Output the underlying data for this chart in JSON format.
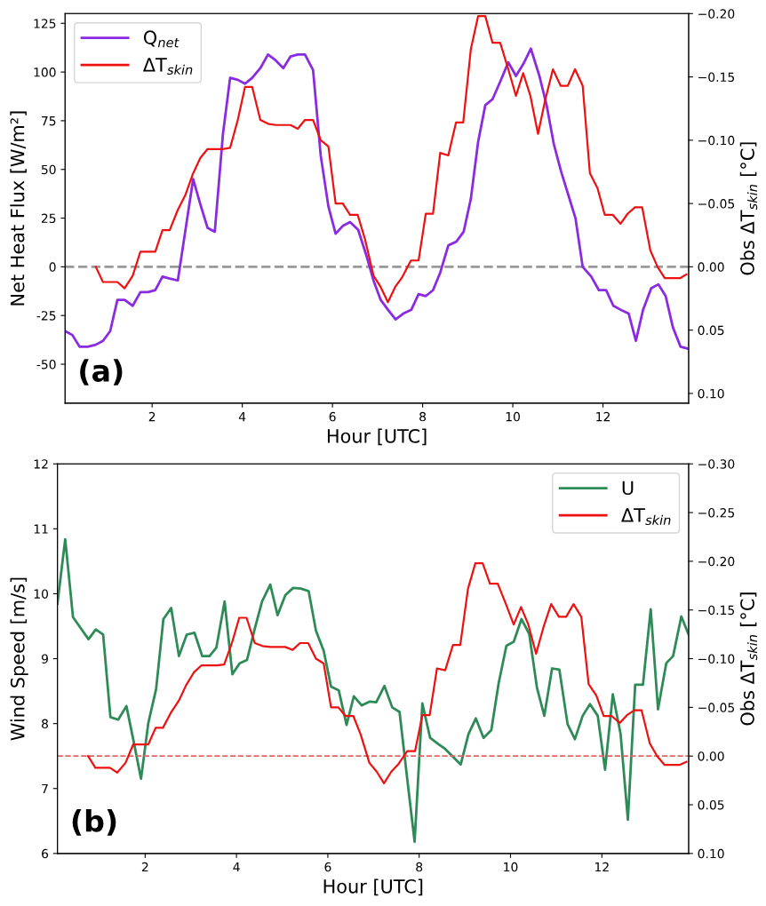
{
  "chart_data": [
    {
      "type": "line",
      "xlabel": "Hour [UTC]",
      "ylabel": "Net Heat Flux [W/m²]",
      "y2label": "Obs ΔT$_{skin}$ [°C]",
      "legend": "top left",
      "annotations": [
        "(a)"
      ],
      "xlim": [
        0.07,
        13.9
      ],
      "xticks": [
        2,
        4,
        6,
        8,
        10,
        12
      ],
      "ylim": [
        -70,
        130
      ],
      "yticks": [
        -50,
        -25,
        0,
        25,
        50,
        75,
        100,
        125
      ],
      "y2lim": [
        0.1077,
        -0.2
      ],
      "y2ticks": [
        {
          "value": 0.1,
          "label": "0.10"
        },
        {
          "value": 0.05,
          "label": "0.05"
        },
        {
          "value": 0,
          "label": "0.00"
        },
        {
          "value": -0.05,
          "label": "−0.05"
        },
        {
          "value": -0.1,
          "label": "−0.10"
        },
        {
          "value": -0.15,
          "label": "−0.15"
        },
        {
          "value": -0.2,
          "label": "−0.20"
        }
      ],
      "ref_lines": [
        {
          "axis": "y",
          "value": 0,
          "color": "#999999",
          "line_style": "dashed"
        }
      ],
      "series": [
        {
          "name": "Q$_{net}$",
          "color": "#8a2be2",
          "x": [
            0.07,
            0.23,
            0.39,
            0.57,
            0.75,
            0.91,
            1.07,
            1.23,
            1.39,
            1.57,
            1.74,
            1.91,
            2.07,
            2.23,
            2.39,
            2.57,
            2.91,
            3.07,
            3.23,
            3.39,
            3.57,
            3.73,
            3.9,
            4.06,
            4.22,
            4.4,
            4.57,
            4.74,
            4.91,
            5.07,
            5.23,
            5.39,
            5.57,
            5.74,
            5.91,
            6.07,
            6.23,
            6.39,
            6.57,
            6.75,
            6.91,
            7.07,
            7.23,
            7.4,
            7.57,
            7.75,
            7.91,
            8.07,
            8.23,
            8.39,
            8.57,
            8.75,
            8.91,
            9.07,
            9.23,
            9.39,
            9.55,
            9.72,
            9.9,
            10.07,
            10.23,
            10.4,
            10.59,
            10.75,
            10.91,
            11.07,
            11.23,
            11.39,
            11.55,
            11.74,
            11.91,
            12.07,
            12.23,
            12.39,
            12.57,
            12.73,
            12.89,
            13.07,
            13.23,
            13.39,
            13.55,
            13.72,
            13.88
          ],
          "values": [
            -33,
            -35,
            -41,
            -41,
            -40,
            -38,
            -33,
            -17,
            -17,
            -20,
            -13,
            -13,
            -12,
            -5,
            -6,
            -7,
            45,
            32,
            20,
            18,
            68,
            97,
            96,
            94,
            97,
            102,
            109,
            106,
            102,
            108,
            109,
            109,
            101,
            57,
            31,
            17,
            21,
            23,
            19,
            6,
            -7,
            -17,
            -22,
            -27,
            -24,
            -22,
            -14,
            -15,
            -12,
            -3,
            11,
            13,
            18,
            35,
            64,
            83,
            86,
            95,
            105,
            98,
            104,
            112,
            98,
            83,
            63,
            49,
            37,
            25,
            0,
            -5,
            -12,
            -12,
            -20,
            -22,
            -24,
            -38,
            -22,
            -11,
            -9,
            -15,
            -31,
            -41,
            -42
          ]
        },
        {
          "name": "ΔT$_{skin}$",
          "color": "#ee1111",
          "axis": "y2",
          "x": [
            0.75,
            0.91,
            1.23,
            1.39,
            1.57,
            1.74,
            2.07,
            2.23,
            2.39,
            2.57,
            2.74,
            2.9,
            3.07,
            3.23,
            3.57,
            3.73,
            3.9,
            4.06,
            4.22,
            4.4,
            4.57,
            4.74,
            5.07,
            5.23,
            5.39,
            5.57,
            5.74,
            5.91,
            6.07,
            6.23,
            6.39,
            6.56,
            6.72,
            6.91,
            7.07,
            7.23,
            7.39,
            7.55,
            7.74,
            7.91,
            8.07,
            8.23,
            8.39,
            8.57,
            8.74,
            8.9,
            9.07,
            9.23,
            9.39,
            9.55,
            9.72,
            9.9,
            10.07,
            10.23,
            10.39,
            10.56,
            10.72,
            10.89,
            11.06,
            11.22,
            11.38,
            11.55,
            11.71,
            11.88,
            12.04,
            12.22,
            12.39,
            12.55,
            12.71,
            12.87,
            13.05,
            13.21,
            13.37,
            13.71,
            13.85
          ],
          "values": [
            0,
            0.012,
            0.012,
            0.017,
            0.007,
            -0.012,
            -0.012,
            -0.029,
            -0.029,
            -0.045,
            -0.057,
            -0.073,
            -0.086,
            -0.093,
            -0.093,
            -0.094,
            -0.116,
            -0.142,
            -0.142,
            -0.116,
            -0.113,
            -0.112,
            -0.112,
            -0.109,
            -0.116,
            -0.116,
            -0.1,
            -0.095,
            -0.05,
            -0.05,
            -0.041,
            -0.041,
            -0.022,
            0.007,
            0.016,
            0.028,
            0.016,
            0.008,
            -0.005,
            -0.005,
            -0.042,
            -0.042,
            -0.09,
            -0.088,
            -0.114,
            -0.114,
            -0.172,
            -0.198,
            -0.198,
            -0.177,
            -0.177,
            -0.156,
            -0.135,
            -0.153,
            -0.135,
            -0.105,
            -0.132,
            -0.156,
            -0.143,
            -0.143,
            -0.156,
            -0.143,
            -0.074,
            -0.062,
            -0.041,
            -0.041,
            -0.034,
            -0.042,
            -0.047,
            -0.047,
            -0.013,
            0,
            0.009,
            0.009,
            0.006
          ]
        }
      ]
    },
    {
      "type": "line",
      "xlabel": "Hour [UTC]",
      "ylabel": "Wind Speed [m/s]",
      "y2label": "Obs ΔT$_{skin}$ [°C]",
      "legend": "top right",
      "annotations": [
        "(b)"
      ],
      "xlim": [
        0.08,
        13.9
      ],
      "xticks": [
        2,
        4,
        6,
        8,
        10,
        12
      ],
      "ylim": [
        6,
        12
      ],
      "yticks": [
        6,
        7,
        8,
        9,
        10,
        11,
        12
      ],
      "y2lim": [
        0.1,
        -0.3
      ],
      "y2ticks": [
        {
          "value": 0.1,
          "label": "0.10"
        },
        {
          "value": 0.05,
          "label": "0.05"
        },
        {
          "value": 0,
          "label": "0.00"
        },
        {
          "value": -0.05,
          "label": "−0.05"
        },
        {
          "value": -0.1,
          "label": "−0.10"
        },
        {
          "value": -0.15,
          "label": "−0.15"
        },
        {
          "value": -0.2,
          "label": "−0.20"
        },
        {
          "value": -0.25,
          "label": "−0.25"
        },
        {
          "value": -0.3,
          "label": "−0.30"
        }
      ],
      "ref_lines": [
        {
          "axis": "y2",
          "value": 0,
          "color": "#e06666",
          "line_style": "dashed"
        }
      ],
      "series": [
        {
          "name": "U",
          "color": "#2e8b57",
          "x": [
            0.08,
            0.25,
            0.42,
            0.59,
            0.76,
            0.92,
            1.08,
            1.24,
            1.41,
            1.59,
            1.75,
            1.91,
            2.07,
            2.24,
            2.4,
            2.57,
            2.74,
            2.91,
            3.08,
            3.25,
            3.41,
            3.56,
            3.74,
            3.91,
            4.07,
            4.23,
            4.4,
            4.56,
            4.74,
            4.9,
            5.07,
            5.24,
            5.41,
            5.58,
            5.74,
            5.91,
            6.07,
            6.24,
            6.41,
            6.57,
            6.74,
            6.92,
            7.06,
            7.24,
            7.41,
            7.57,
            7.74,
            7.9,
            8.07,
            8.24,
            8.41,
            8.57,
            8.91,
            9.08,
            9.24,
            9.41,
            9.58,
            9.74,
            9.91,
            10.07,
            10.24,
            10.41,
            10.58,
            10.74,
            10.91,
            11.07,
            11.25,
            11.41,
            11.58,
            11.74,
            11.91,
            12.07,
            12.24,
            12.41,
            12.57,
            12.73,
            12.9,
            13.07,
            13.23,
            13.41,
            13.56,
            13.74,
            13.9
          ],
          "values": [
            9.85,
            10.84,
            9.64,
            9.47,
            9.3,
            9.45,
            9.37,
            8.1,
            8.06,
            8.27,
            7.72,
            7.15,
            8.01,
            8.53,
            9.61,
            9.78,
            9.04,
            9.37,
            9.4,
            9.04,
            9.04,
            9.17,
            9.88,
            8.76,
            8.93,
            8.98,
            9.46,
            9.88,
            10.14,
            9.67,
            9.98,
            10.09,
            10.08,
            10.04,
            9.43,
            9.12,
            8.57,
            8.51,
            7.98,
            8.42,
            8.28,
            8.34,
            8.33,
            8.58,
            8.25,
            8.18,
            7.14,
            6.18,
            8.31,
            7.78,
            7.69,
            7.61,
            7.37,
            7.84,
            8.08,
            7.78,
            7.9,
            8.62,
            9.2,
            9.26,
            9.61,
            9.38,
            8.55,
            8.12,
            8.85,
            8.83,
            7.99,
            7.76,
            8.12,
            8.3,
            8.12,
            7.29,
            8.45,
            7.84,
            6.52,
            8.6,
            8.6,
            9.76,
            8.22,
            8.93,
            9.04,
            9.65,
            9.37
          ]
        },
        {
          "name": "ΔT$_{skin}$",
          "color": "#ee1111",
          "axis": "y2",
          "x": [
            0.75,
            0.91,
            1.23,
            1.39,
            1.57,
            1.74,
            2.07,
            2.23,
            2.39,
            2.57,
            2.74,
            2.9,
            3.07,
            3.23,
            3.57,
            3.73,
            3.9,
            4.06,
            4.22,
            4.4,
            4.57,
            4.74,
            5.07,
            5.23,
            5.39,
            5.57,
            5.74,
            5.91,
            6.07,
            6.23,
            6.39,
            6.56,
            6.72,
            6.91,
            7.07,
            7.23,
            7.39,
            7.55,
            7.74,
            7.91,
            8.07,
            8.23,
            8.39,
            8.57,
            8.74,
            8.9,
            9.07,
            9.23,
            9.39,
            9.55,
            9.72,
            9.9,
            10.07,
            10.23,
            10.39,
            10.56,
            10.72,
            10.89,
            11.06,
            11.22,
            11.38,
            11.55,
            11.71,
            11.88,
            12.04,
            12.22,
            12.39,
            12.55,
            12.71,
            12.87,
            13.05,
            13.21,
            13.37,
            13.71,
            13.85
          ],
          "values": [
            0,
            0.012,
            0.012,
            0.017,
            0.007,
            -0.012,
            -0.012,
            -0.029,
            -0.029,
            -0.045,
            -0.057,
            -0.073,
            -0.086,
            -0.093,
            -0.093,
            -0.094,
            -0.116,
            -0.142,
            -0.142,
            -0.116,
            -0.113,
            -0.112,
            -0.112,
            -0.109,
            -0.116,
            -0.116,
            -0.1,
            -0.095,
            -0.05,
            -0.05,
            -0.041,
            -0.041,
            -0.022,
            0.007,
            0.016,
            0.028,
            0.016,
            0.008,
            -0.005,
            -0.005,
            -0.042,
            -0.042,
            -0.09,
            -0.088,
            -0.114,
            -0.114,
            -0.172,
            -0.198,
            -0.198,
            -0.177,
            -0.177,
            -0.156,
            -0.135,
            -0.153,
            -0.135,
            -0.105,
            -0.132,
            -0.156,
            -0.143,
            -0.143,
            -0.156,
            -0.143,
            -0.074,
            -0.062,
            -0.041,
            -0.041,
            -0.034,
            -0.042,
            -0.047,
            -0.047,
            -0.013,
            0,
            0.009,
            0.009,
            0.006
          ]
        }
      ]
    }
  ]
}
